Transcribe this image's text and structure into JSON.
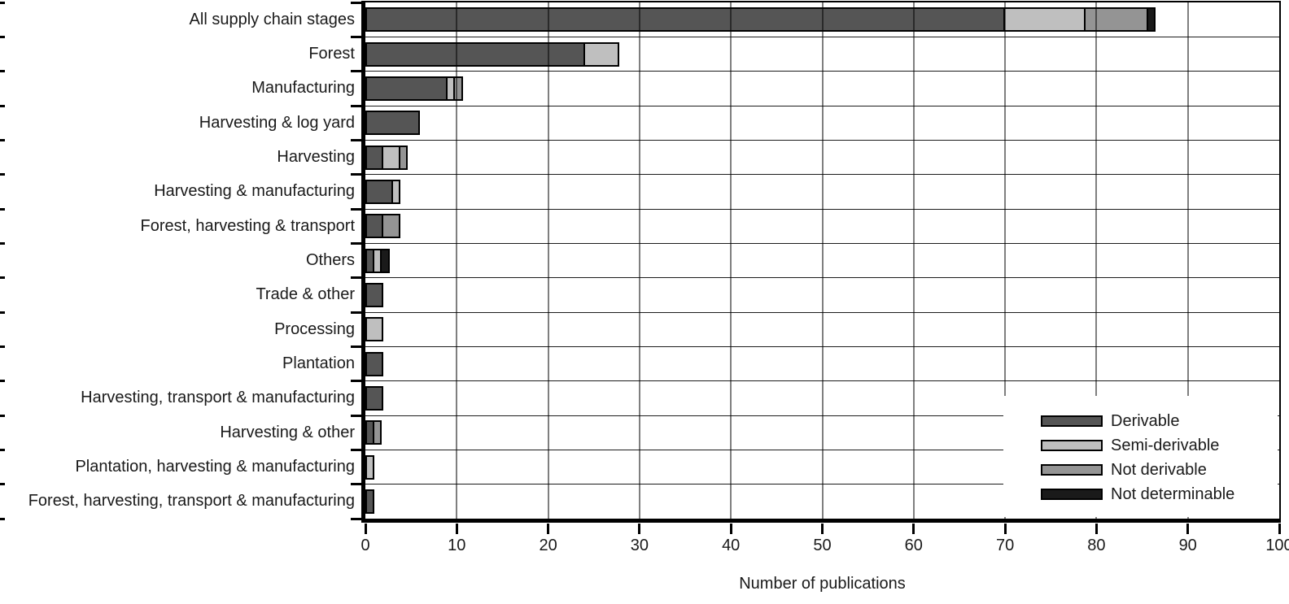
{
  "chart_data": {
    "type": "bar",
    "orientation": "horizontal",
    "stacked": true,
    "title": "",
    "xlabel": "Number of publications",
    "ylabel": "",
    "xlim": [
      0,
      100
    ],
    "x_ticks": [
      0,
      10,
      20,
      30,
      40,
      50,
      60,
      70,
      80,
      90,
      100
    ],
    "grid": "vertical gridlines every 10 units; horizontal separator line between every category row",
    "legend_position": "inside bottom-right",
    "categories": [
      "All supply chain stages",
      "Forest",
      "Manufacturing",
      "Harvesting & log yard",
      "Harvesting",
      "Harvesting & manufacturing",
      "Forest, harvesting & transport",
      "Others",
      "Trade & other",
      "Processing",
      "Plantation",
      "Harvesting, transport & manufacturing",
      "Harvesting & other",
      "Plantation, harvesting & manufacturing",
      "Forest, harvesting, transport & manufacturing"
    ],
    "series": [
      {
        "name": "Derivable",
        "color": "#555555",
        "values": [
          70,
          24,
          9,
          6,
          2,
          3,
          2,
          1,
          2,
          0,
          2,
          2,
          1,
          0,
          1
        ]
      },
      {
        "name": "Semi-derivable",
        "color": "#bfbfbf",
        "values": [
          9,
          4,
          1,
          0,
          2,
          1,
          0,
          1,
          0,
          2,
          0,
          0,
          0,
          1,
          0
        ]
      },
      {
        "name": "Not derivable",
        "color": "#949494",
        "values": [
          7,
          0,
          1,
          0,
          1,
          0,
          2,
          0,
          0,
          0,
          0,
          0,
          1,
          0,
          0
        ]
      },
      {
        "name": "Not determinable",
        "color": "#1a1a1a",
        "values": [
          1,
          0,
          0,
          0,
          0,
          0,
          0,
          1,
          0,
          0,
          0,
          0,
          0,
          0,
          0
        ]
      }
    ],
    "totals": [
      87,
      28,
      11,
      6,
      5,
      4,
      4,
      3,
      2,
      2,
      2,
      2,
      2,
      1,
      1
    ],
    "axis_color": "#000000",
    "background_color": "#ffffff"
  }
}
